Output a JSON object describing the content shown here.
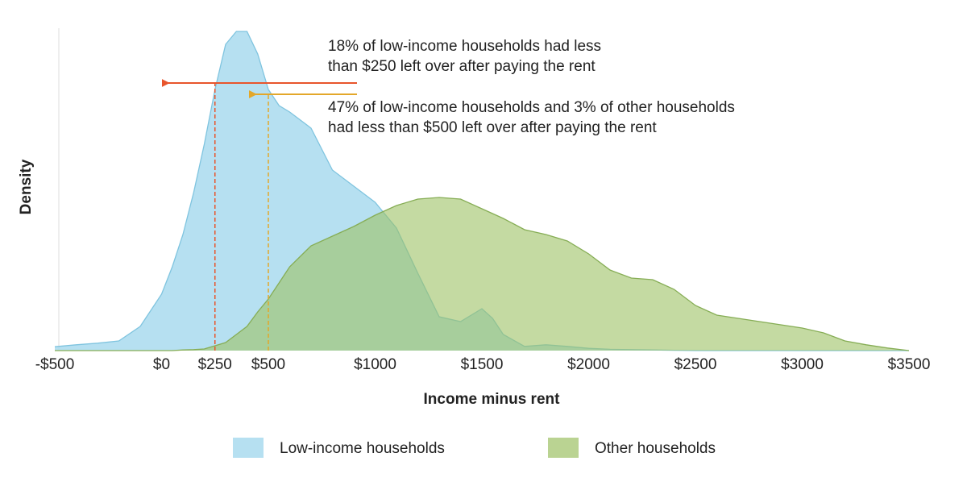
{
  "chart_data": {
    "type": "area",
    "x_label": "Income minus rent",
    "y_label": "Density",
    "x": [
      -500,
      -400,
      -300,
      -200,
      -100,
      0,
      50,
      100,
      150,
      200,
      250,
      300,
      350,
      400,
      450,
      500,
      550,
      600,
      700,
      800,
      900,
      1000,
      1100,
      1200,
      1300,
      1400,
      1500,
      1550,
      1600,
      1700,
      1800,
      1900,
      2000,
      2100,
      2200,
      2300,
      2400,
      2500,
      2600,
      2700,
      2800,
      2900,
      3000,
      3100,
      3200,
      3300,
      3400,
      3500
    ],
    "series": [
      {
        "name": "Low-income households",
        "color": "#a9dbee",
        "line_color": "#7fc4df",
        "values": [
          1.2,
          1.8,
          2.3,
          3,
          7.5,
          17.5,
          26,
          36,
          49,
          64,
          81,
          95,
          99,
          99,
          92,
          81,
          76,
          74,
          69,
          56,
          51,
          46,
          38,
          24,
          10.5,
          9,
          13,
          10,
          5,
          1.3,
          1.8,
          1.3,
          0.7,
          0.4,
          0.3,
          0.2,
          0.1,
          0,
          0,
          0,
          0,
          0,
          0,
          0,
          0,
          0,
          0,
          0
        ]
      },
      {
        "name": "Other households",
        "color": "#9cc164",
        "line_color": "#86ad55",
        "values": [
          0,
          0,
          0,
          0,
          0,
          0,
          0,
          0.2,
          0.3,
          0.5,
          1.5,
          2.5,
          5,
          7.5,
          12,
          16,
          21,
          26,
          32.5,
          35.5,
          38.5,
          42,
          45,
          47,
          47.5,
          47,
          44,
          42.5,
          41,
          37.5,
          36,
          34,
          30,
          25,
          22.5,
          22,
          19,
          14,
          11,
          10,
          9,
          8,
          7,
          5.5,
          3,
          1.8,
          0.8,
          0
        ]
      }
    ],
    "xlim": [
      -500,
      3500
    ],
    "ylim": [
      0,
      100
    ],
    "xticks": [
      {
        "value": -500,
        "label": "-$500"
      },
      {
        "value": 0,
        "label": "$0"
      },
      {
        "value": 250,
        "label": "$250"
      },
      {
        "value": 500,
        "label": "$500"
      },
      {
        "value": 1000,
        "label": "$1000"
      },
      {
        "value": 1500,
        "label": "$1500"
      },
      {
        "value": 2000,
        "label": "$2000"
      },
      {
        "value": 2500,
        "label": "$2500"
      },
      {
        "value": 3000,
        "label": "$3000"
      },
      {
        "value": 3500,
        "label": "$3500"
      }
    ],
    "markers": [
      {
        "x": 250,
        "color": "#e8552c",
        "lines": [
          "18% of low-income households had less",
          "than $250 left over after paying the rent"
        ]
      },
      {
        "x": 500,
        "color": "#e3a72a",
        "lines": [
          "47% of low-income households and 3% of other households",
          "had less than $500 left over after paying the rent"
        ]
      }
    ]
  }
}
